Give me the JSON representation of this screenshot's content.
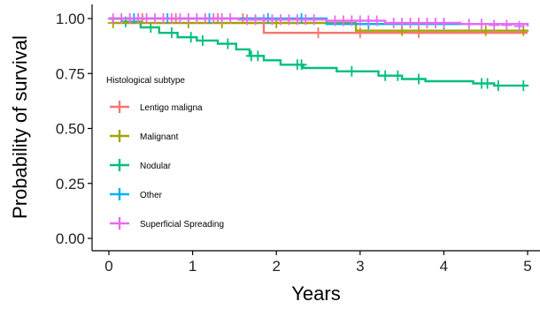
{
  "chart_data": {
    "type": "line",
    "title": "",
    "xlabel": "Years",
    "ylabel": "Probability of survival",
    "xlim": [
      0,
      5
    ],
    "ylim": [
      0,
      1
    ],
    "x_ticks": [
      "0",
      "1",
      "2",
      "3",
      "4",
      "5"
    ],
    "y_ticks": [
      "0.00",
      "0.25",
      "0.50",
      "0.75",
      "1.00"
    ],
    "grid": false,
    "legend": {
      "title": "Histological subtype",
      "placement": "left-center, inside plot"
    },
    "series": [
      {
        "name": "Lentigo maligna",
        "color": "#F8766D",
        "steps": [
          [
            0,
            1.0
          ],
          [
            1.85,
            0.935
          ],
          [
            5.0,
            0.935
          ]
        ],
        "censored": [
          [
            0.4,
            1.0
          ],
          [
            0.8,
            1.0
          ],
          [
            1.3,
            1.0
          ],
          [
            1.6,
            1.0
          ],
          [
            2.5,
            0.935
          ],
          [
            3.0,
            0.935
          ],
          [
            3.7,
            0.935
          ]
        ]
      },
      {
        "name": "Malignant",
        "color": "#A3A500",
        "steps": [
          [
            0,
            1.0
          ],
          [
            0.05,
            0.98
          ],
          [
            2.95,
            0.945
          ],
          [
            5.0,
            0.945
          ]
        ],
        "censored": [
          [
            0.05,
            0.98
          ],
          [
            0.95,
            0.98
          ],
          [
            1.35,
            0.98
          ],
          [
            2.0,
            0.98
          ],
          [
            3.5,
            0.945
          ],
          [
            4.5,
            0.945
          ],
          [
            4.95,
            0.945
          ]
        ]
      },
      {
        "name": "Nodular",
        "color": "#00BF7D",
        "steps": [
          [
            0,
            1.0
          ],
          [
            0.15,
            0.985
          ],
          [
            0.38,
            0.96
          ],
          [
            0.6,
            0.935
          ],
          [
            0.82,
            0.915
          ],
          [
            1.05,
            0.9
          ],
          [
            1.3,
            0.885
          ],
          [
            1.52,
            0.86
          ],
          [
            1.68,
            0.83
          ],
          [
            1.85,
            0.81
          ],
          [
            2.05,
            0.79
          ],
          [
            2.32,
            0.775
          ],
          [
            2.72,
            0.76
          ],
          [
            3.22,
            0.74
          ],
          [
            3.5,
            0.725
          ],
          [
            3.78,
            0.715
          ],
          [
            4.35,
            0.705
          ],
          [
            4.6,
            0.695
          ],
          [
            5.0,
            0.695
          ]
        ],
        "censored": [
          [
            0.2,
            0.985
          ],
          [
            0.5,
            0.96
          ],
          [
            0.75,
            0.935
          ],
          [
            0.98,
            0.915
          ],
          [
            1.12,
            0.9
          ],
          [
            1.42,
            0.885
          ],
          [
            1.7,
            0.83
          ],
          [
            1.78,
            0.83
          ],
          [
            2.25,
            0.79
          ],
          [
            2.3,
            0.79
          ],
          [
            2.9,
            0.76
          ],
          [
            3.3,
            0.74
          ],
          [
            3.45,
            0.74
          ],
          [
            3.7,
            0.725
          ],
          [
            4.45,
            0.705
          ],
          [
            4.52,
            0.705
          ],
          [
            4.65,
            0.695
          ],
          [
            4.95,
            0.695
          ]
        ]
      },
      {
        "name": "Other",
        "color": "#00B0F6",
        "steps": [
          [
            0,
            1.0
          ],
          [
            2.6,
            0.975
          ],
          [
            5.0,
            0.975
          ]
        ],
        "censored": [
          [
            0.3,
            1.0
          ],
          [
            0.7,
            1.0
          ],
          [
            1.2,
            1.0
          ],
          [
            1.9,
            1.0
          ],
          [
            2.3,
            1.0
          ],
          [
            3.1,
            0.975
          ],
          [
            4.0,
            0.975
          ]
        ]
      },
      {
        "name": "Superficial Spreading",
        "color": "#E76BF3",
        "steps": [
          [
            0,
            1.0
          ],
          [
            1.55,
            0.995
          ],
          [
            2.6,
            0.99
          ],
          [
            3.3,
            0.98
          ],
          [
            4.2,
            0.975
          ],
          [
            5.0,
            0.965
          ]
        ],
        "censored": [
          [
            0.05,
            1.0
          ],
          [
            0.15,
            1.0
          ],
          [
            0.25,
            1.0
          ],
          [
            0.35,
            1.0
          ],
          [
            0.45,
            1.0
          ],
          [
            0.55,
            1.0
          ],
          [
            0.65,
            1.0
          ],
          [
            0.75,
            1.0
          ],
          [
            0.85,
            1.0
          ],
          [
            0.95,
            1.0
          ],
          [
            1.05,
            1.0
          ],
          [
            1.15,
            1.0
          ],
          [
            1.25,
            1.0
          ],
          [
            1.35,
            1.0
          ],
          [
            1.45,
            1.0
          ],
          [
            1.65,
            0.995
          ],
          [
            1.75,
            0.995
          ],
          [
            1.85,
            0.995
          ],
          [
            1.95,
            0.995
          ],
          [
            2.05,
            0.995
          ],
          [
            2.15,
            0.995
          ],
          [
            2.25,
            0.995
          ],
          [
            2.35,
            0.995
          ],
          [
            2.45,
            0.995
          ],
          [
            2.7,
            0.99
          ],
          [
            2.8,
            0.99
          ],
          [
            2.9,
            0.99
          ],
          [
            3.0,
            0.99
          ],
          [
            3.1,
            0.99
          ],
          [
            3.2,
            0.99
          ],
          [
            3.4,
            0.98
          ],
          [
            3.5,
            0.98
          ],
          [
            3.6,
            0.98
          ],
          [
            3.7,
            0.98
          ],
          [
            3.8,
            0.98
          ],
          [
            3.9,
            0.98
          ],
          [
            4.0,
            0.98
          ],
          [
            4.3,
            0.975
          ],
          [
            4.45,
            0.975
          ],
          [
            4.6,
            0.97
          ],
          [
            4.75,
            0.97
          ],
          [
            4.9,
            0.965
          ]
        ]
      }
    ]
  }
}
